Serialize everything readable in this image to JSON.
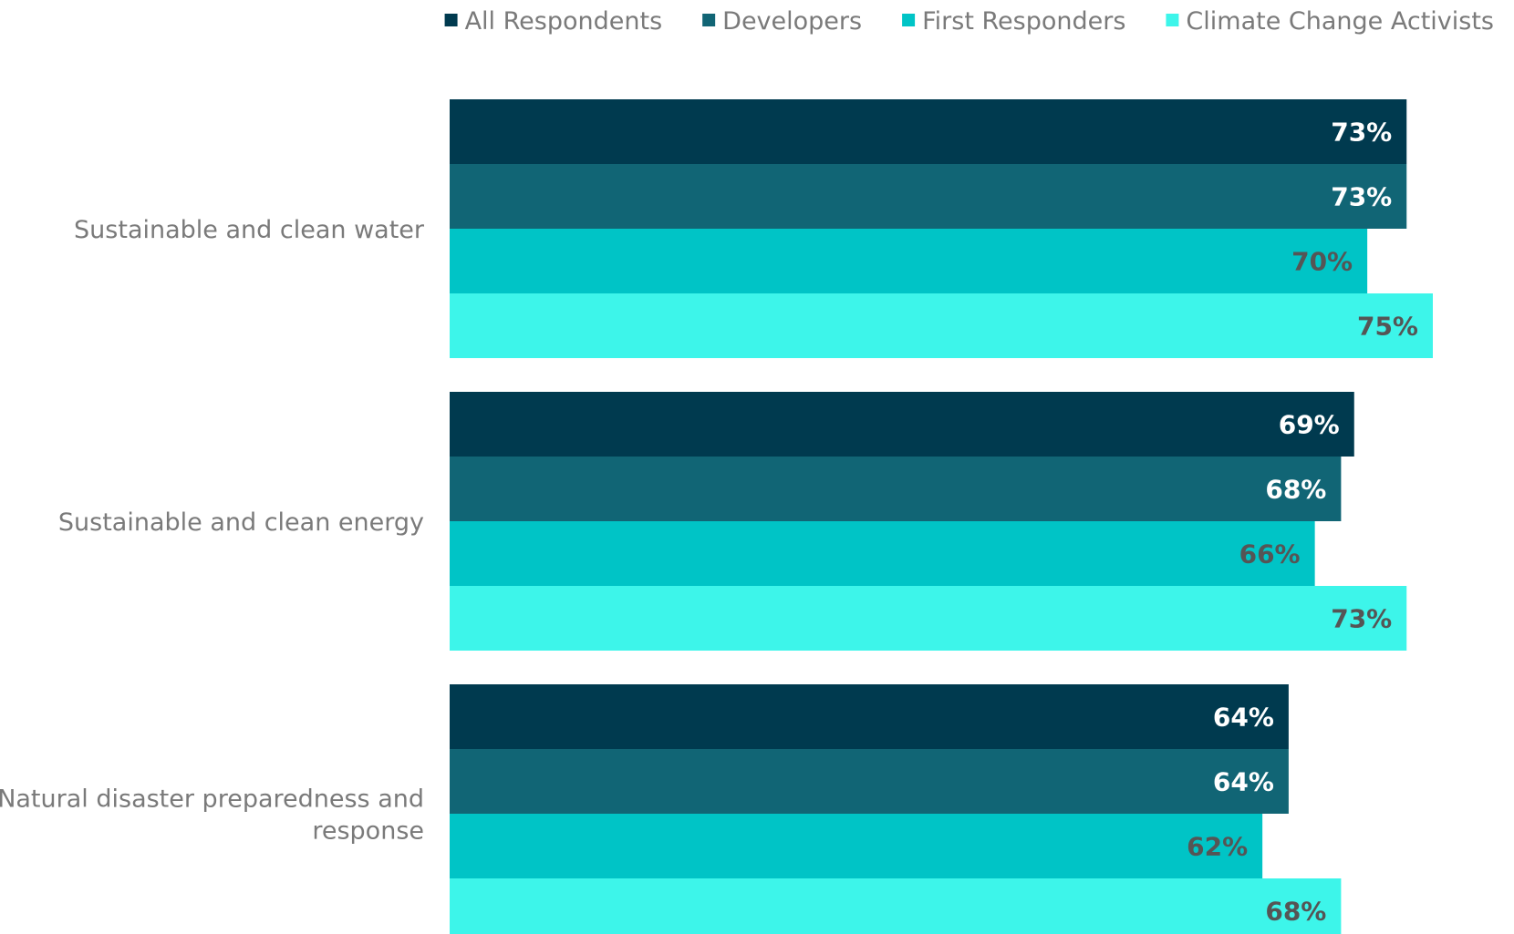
{
  "chart_data": {
    "type": "bar",
    "orientation": "horizontal",
    "categories": [
      [
        "Sustainable and clean water"
      ],
      [
        "Sustainable and clean energy"
      ],
      [
        "Natural disaster preparedness and",
        "response"
      ]
    ],
    "series": [
      {
        "name": "All Respondents",
        "color": "#003a4f",
        "label_color": "#ffffff",
        "values": [
          73,
          69,
          64
        ]
      },
      {
        "name": "Developers",
        "color": "#116575",
        "label_color": "#ffffff",
        "values": [
          73,
          68,
          64
        ]
      },
      {
        "name": "First Responders",
        "color": "#00c4c6",
        "label_color": "#555555",
        "values": [
          70,
          66,
          62
        ]
      },
      {
        "name": "Climate Change Activists",
        "color": "#3df5ea",
        "label_color": "#555555",
        "values": [
          75,
          73,
          68
        ]
      }
    ],
    "value_format": "{v}%",
    "legend_position": "top-right",
    "grid": false,
    "axes_visible": false,
    "xlim": [
      0,
      100
    ]
  }
}
